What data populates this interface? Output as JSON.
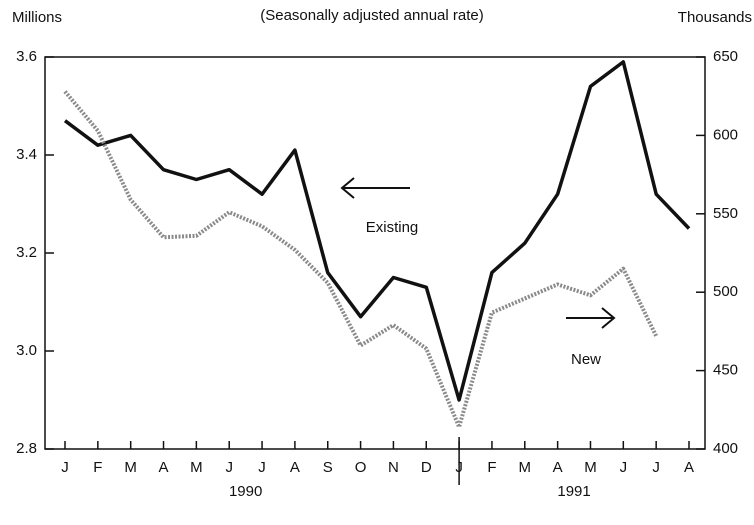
{
  "chart_data": {
    "type": "line",
    "title": "(Seasonally adjusted annual rate)",
    "y_label": "Millions",
    "y2_label": "Thousands",
    "categories": [
      "J",
      "F",
      "M",
      "A",
      "M",
      "J",
      "J",
      "A",
      "S",
      "O",
      "N",
      "D",
      "J",
      "F",
      "M",
      "A",
      "M",
      "J",
      "J",
      "A"
    ],
    "year_labels": [
      "1990",
      "1991"
    ],
    "series": [
      {
        "name": "Existing",
        "color": "#111111",
        "axis": "y",
        "values": [
          3.47,
          3.42,
          3.44,
          3.37,
          3.35,
          3.37,
          3.32,
          3.41,
          3.16,
          3.07,
          3.15,
          3.13,
          2.9,
          3.16,
          3.22,
          3.32,
          3.54,
          3.59,
          3.32,
          3.25
        ]
      },
      {
        "name": "New",
        "color": "#8a8a8a",
        "axis": "y2",
        "values": [
          628,
          603,
          559,
          535,
          536,
          551,
          542,
          527,
          506,
          466,
          479,
          464,
          414,
          487,
          496,
          505,
          498,
          515,
          472,
          null
        ]
      }
    ],
    "ylim": [
      2.8,
      3.6
    ],
    "yticks": [
      2.8,
      {
        "value": 3.0,
        "label": "3.0"
      },
      3.2,
      3.4,
      3.6
    ],
    "y2lim": [
      400,
      650
    ],
    "y2ticks": [
      400,
      450,
      500,
      550,
      600,
      650
    ]
  }
}
